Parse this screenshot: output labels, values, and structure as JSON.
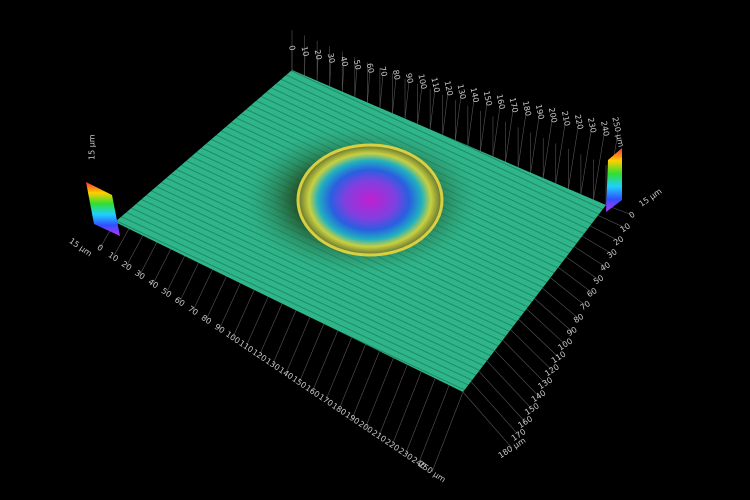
{
  "axes": {
    "front": {
      "ticks": [
        "0",
        "10",
        "20",
        "30",
        "40",
        "50",
        "60",
        "70",
        "80",
        "90",
        "100",
        "110",
        "120",
        "130",
        "140",
        "150",
        "160",
        "170",
        "180",
        "190",
        "200",
        "210",
        "220",
        "230",
        "240",
        "250 µm"
      ]
    },
    "right": {
      "ticks": [
        "0",
        "10",
        "20",
        "30",
        "40",
        "50",
        "60",
        "70",
        "80",
        "90",
        "100",
        "110",
        "120",
        "130",
        "140",
        "150",
        "160",
        "170",
        "180 µm"
      ]
    },
    "back": {
      "ticks": [
        "0",
        "10",
        "20",
        "30",
        "40",
        "50",
        "60",
        "70",
        "80",
        "90",
        "100",
        "110",
        "120",
        "130",
        "140",
        "150",
        "160",
        "170",
        "180",
        "190",
        "200",
        "210",
        "220",
        "230",
        "240",
        "250 µm"
      ]
    }
  },
  "height": {
    "left_label": "15 µm",
    "right_label": "15 µm",
    "top_label": "15 µm"
  }
}
